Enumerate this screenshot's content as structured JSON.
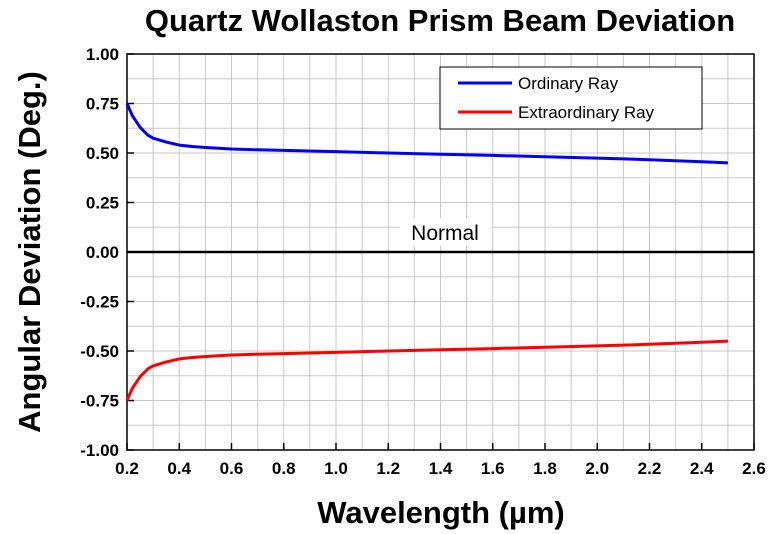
{
  "chart_data": {
    "type": "line",
    "title": "Quartz Wollaston Prism Beam Deviation",
    "xlabel": "Wavelength (µm)",
    "ylabel": "Angular Deviation (Deg.)",
    "xlim": [
      0.2,
      2.6
    ],
    "ylim": [
      -1.0,
      1.0
    ],
    "xticks": [
      "0.2",
      "0.4",
      "0.6",
      "0.8",
      "1.0",
      "1.2",
      "1.4",
      "1.6",
      "1.8",
      "2.0",
      "2.2",
      "2.4",
      "2.6"
    ],
    "yticks": [
      "1.00",
      "0.75",
      "0.50",
      "0.25",
      "0.00",
      "-0.25",
      "-0.50",
      "-0.75",
      "-1.00"
    ],
    "grid": true,
    "legend_position": "top-right",
    "annotation": "Normal",
    "series": [
      {
        "name": "Ordinary Ray",
        "color": "#0000ff",
        "x": [
          0.2,
          0.22,
          0.25,
          0.28,
          0.3,
          0.35,
          0.4,
          0.45,
          0.5,
          0.6,
          0.7,
          0.8,
          1.0,
          1.2,
          1.4,
          1.6,
          1.8,
          2.0,
          2.2,
          2.4,
          2.5
        ],
        "y": [
          0.75,
          0.69,
          0.63,
          0.59,
          0.575,
          0.555,
          0.54,
          0.533,
          0.528,
          0.52,
          0.516,
          0.513,
          0.507,
          0.5,
          0.494,
          0.488,
          0.481,
          0.474,
          0.466,
          0.456,
          0.45
        ]
      },
      {
        "name": "Extraordinary Ray",
        "color": "#ff0000",
        "x": [
          0.2,
          0.22,
          0.25,
          0.28,
          0.3,
          0.35,
          0.4,
          0.45,
          0.5,
          0.6,
          0.7,
          0.8,
          1.0,
          1.2,
          1.4,
          1.6,
          1.8,
          2.0,
          2.2,
          2.4,
          2.5
        ],
        "y": [
          -0.75,
          -0.69,
          -0.63,
          -0.59,
          -0.575,
          -0.555,
          -0.54,
          -0.533,
          -0.528,
          -0.52,
          -0.516,
          -0.513,
          -0.507,
          -0.5,
          -0.494,
          -0.488,
          -0.481,
          -0.474,
          -0.466,
          -0.456,
          -0.45
        ]
      }
    ]
  }
}
